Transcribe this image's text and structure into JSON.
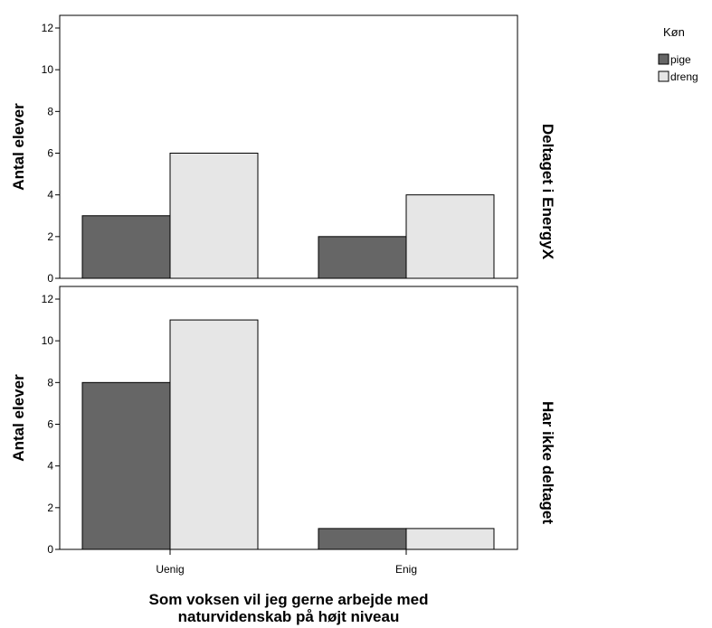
{
  "chart_data": {
    "type": "bar",
    "categories": [
      "Uenig",
      "Enig"
    ],
    "xlabel_lines": [
      "Som voksen vil jeg gerne arbejde med",
      "naturvidenskab på højt niveau"
    ],
    "ylabel": "Antal elever",
    "ylim": [
      0,
      12
    ],
    "yticks": [
      0,
      2,
      4,
      6,
      8,
      10,
      12
    ],
    "grid": false,
    "legend": {
      "title": "Køn",
      "placement": "top-right",
      "entries": [
        "pige",
        "dreng"
      ]
    },
    "series_colors": [
      "#666666",
      "#e6e6e6"
    ],
    "panels": [
      {
        "label": "Deltaget i EnergyX",
        "series": [
          {
            "name": "pige",
            "values": [
              3,
              2
            ]
          },
          {
            "name": "dreng",
            "values": [
              6,
              4
            ]
          }
        ]
      },
      {
        "label": "Har ikke deltaget",
        "series": [
          {
            "name": "pige",
            "values": [
              8,
              1
            ]
          },
          {
            "name": "dreng",
            "values": [
              11,
              1
            ]
          }
        ]
      }
    ]
  }
}
